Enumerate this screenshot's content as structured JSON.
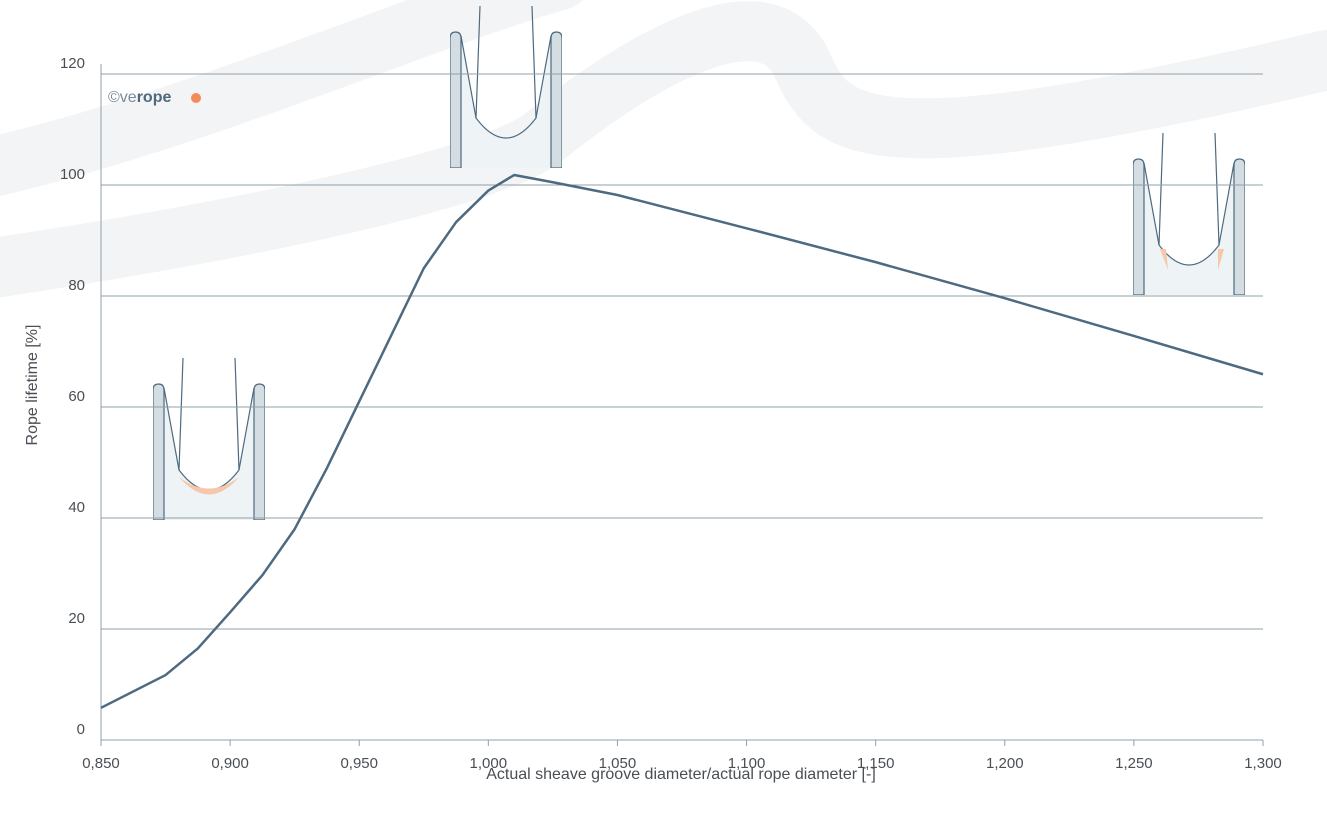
{
  "chart_data": {
    "type": "line",
    "x_label": "Actual sheave groove diameter/actual rope diameter [-]",
    "y_label": "Rope lifetime [%]",
    "logo": {
      "symbol": "©",
      "prefix": "ve",
      "emphasis": "rope"
    },
    "x": [
      0.85,
      0.875,
      0.8875,
      0.9,
      0.9125,
      0.925,
      0.9375,
      0.95,
      0.9625,
      0.975,
      0.9875,
      1.0,
      1.01,
      1.025,
      1.05,
      1.1,
      1.15,
      1.2,
      1.25,
      1.3
    ],
    "series": [
      {
        "name": "Rope lifetime",
        "color": "#4e6a80",
        "values": [
          5.8,
          11.7,
          16.5,
          23,
          29.7,
          38,
          49,
          61,
          73,
          85,
          93.3,
          99,
          101.8,
          100.5,
          98.2,
          92.2,
          86.1,
          79.6,
          72.8,
          65.9
        ]
      }
    ],
    "xlim": [
      0.85,
      1.3
    ],
    "xticks": [
      {
        "value": 0.85,
        "label": "0,850"
      },
      {
        "value": 0.9,
        "label": "0,900"
      },
      {
        "value": 0.95,
        "label": "0,950"
      },
      {
        "value": 1.0,
        "label": "1,000"
      },
      {
        "value": 1.05,
        "label": "1,050"
      },
      {
        "value": 1.1,
        "label": "1,100"
      },
      {
        "value": 1.15,
        "label": "1,150"
      },
      {
        "value": 1.2,
        "label": "1,200"
      },
      {
        "value": 1.25,
        "label": "1,250"
      },
      {
        "value": 1.3,
        "label": "1,300"
      }
    ],
    "ylim": [
      0,
      120
    ],
    "yticks": [
      0,
      20,
      40,
      60,
      80,
      100,
      120
    ],
    "grid": true
  }
}
